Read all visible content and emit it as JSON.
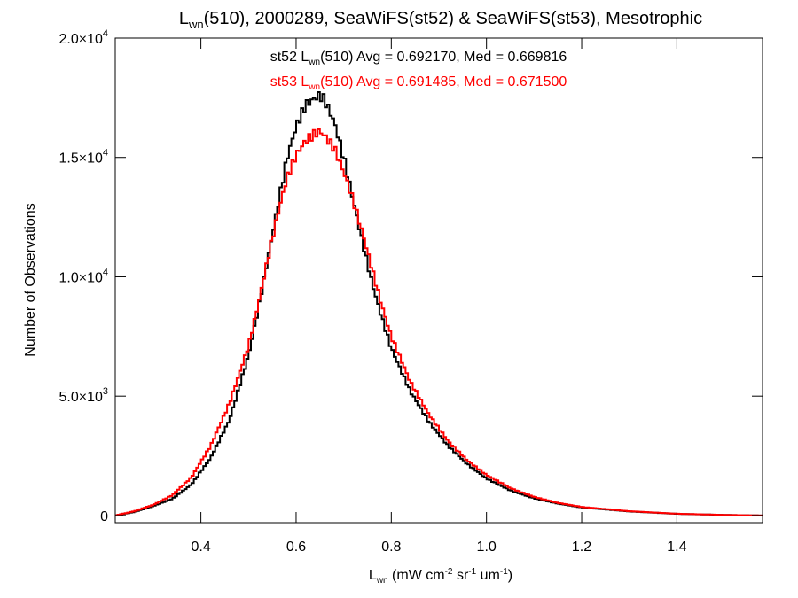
{
  "chart_data": {
    "type": "line",
    "title": {
      "base": "L",
      "sub": "wn",
      "rest": "(510), 2000289, SeaWiFS(st52) & SeaWiFS(st53), Mesotrophic"
    },
    "xlabel": {
      "base": "L",
      "sub": "wn",
      "p1": " (mW cm",
      "sup1": "-2",
      "p2": " sr",
      "sup2": "-1",
      "p3": " um",
      "sup3": "-1",
      "p4": ")"
    },
    "ylabel": "Number of Observations",
    "xlim": [
      0.22,
      1.58
    ],
    "ylim": [
      -300,
      20000
    ],
    "x_ticks": [
      {
        "v": 0.4,
        "label": "0.4"
      },
      {
        "v": 0.6,
        "label": "0.6"
      },
      {
        "v": 0.8,
        "label": "0.8"
      },
      {
        "v": 1.0,
        "label": "1.0"
      },
      {
        "v": 1.2,
        "label": "1.2"
      },
      {
        "v": 1.4,
        "label": "1.4"
      }
    ],
    "y_ticks": [
      {
        "v": 0,
        "mant": "0",
        "exp": ""
      },
      {
        "v": 5000,
        "mant": "5.0×10",
        "exp": "3"
      },
      {
        "v": 10000,
        "mant": "1.0×10",
        "exp": "4"
      },
      {
        "v": 15000,
        "mant": "1.5×10",
        "exp": "4"
      },
      {
        "v": 20000,
        "mant": "2.0×10",
        "exp": "4"
      }
    ],
    "annotations": [
      {
        "name": "st52",
        "color": "#000000",
        "pre": "st52 L",
        "sub": "wn",
        "post": "(510) Avg = 0.692170, Med = 0.669816"
      },
      {
        "name": "st53",
        "color": "#ff0000",
        "pre": "st53 L",
        "sub": "wn",
        "post": "(510) Avg = 0.691485, Med = 0.671500"
      }
    ],
    "grid": false,
    "series": [
      {
        "name": "st52",
        "color": "#000000",
        "x": [
          0.22,
          0.26,
          0.3,
          0.34,
          0.38,
          0.42,
          0.46,
          0.5,
          0.52,
          0.54,
          0.56,
          0.58,
          0.6,
          0.62,
          0.64,
          0.65,
          0.66,
          0.68,
          0.7,
          0.72,
          0.74,
          0.76,
          0.78,
          0.8,
          0.84,
          0.88,
          0.92,
          0.96,
          1.0,
          1.05,
          1.1,
          1.15,
          1.2,
          1.3,
          1.4,
          1.5,
          1.58
        ],
        "y": [
          0,
          150,
          400,
          700,
          1300,
          2400,
          4000,
          6700,
          8600,
          10700,
          12800,
          14900,
          16300,
          17200,
          17500,
          17600,
          17400,
          16500,
          15000,
          13200,
          11400,
          9700,
          8300,
          7000,
          5200,
          3900,
          2900,
          2150,
          1550,
          1050,
          720,
          500,
          340,
          170,
          70,
          25,
          0
        ]
      },
      {
        "name": "st53",
        "color": "#ff0000",
        "x": [
          0.22,
          0.26,
          0.3,
          0.34,
          0.38,
          0.42,
          0.46,
          0.5,
          0.52,
          0.54,
          0.56,
          0.58,
          0.6,
          0.62,
          0.64,
          0.65,
          0.66,
          0.68,
          0.7,
          0.72,
          0.74,
          0.76,
          0.78,
          0.8,
          0.84,
          0.88,
          0.92,
          0.96,
          1.0,
          1.05,
          1.1,
          1.15,
          1.2,
          1.3,
          1.4,
          1.5,
          1.58
        ],
        "y": [
          0,
          180,
          450,
          850,
          1600,
          2900,
          4700,
          7100,
          8800,
          10700,
          12500,
          14100,
          15100,
          15700,
          16000,
          16100,
          15900,
          15400,
          14400,
          13200,
          11800,
          10300,
          8800,
          7500,
          5600,
          4200,
          3100,
          2300,
          1700,
          1150,
          780,
          530,
          360,
          180,
          75,
          25,
          0
        ]
      }
    ]
  }
}
